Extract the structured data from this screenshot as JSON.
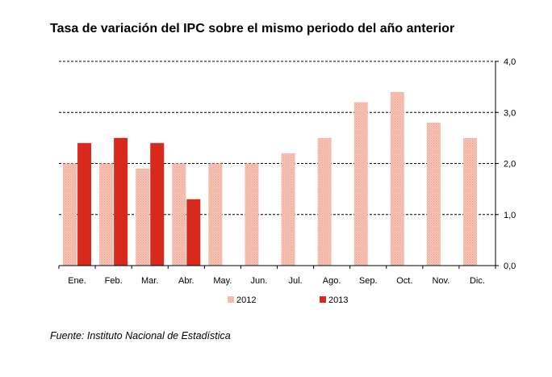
{
  "chart_data": {
    "type": "bar",
    "title": "Tasa de variación del IPC sobre el mismo periodo del año anterior",
    "categories": [
      "Ene.",
      "Feb.",
      "Mar.",
      "Abr.",
      "May.",
      "Jun.",
      "Jul.",
      "Ago.",
      "Sep.",
      "Oct.",
      "Nov.",
      "Dic."
    ],
    "series": [
      {
        "name": "2012",
        "color": "#f4b8a8",
        "values": [
          2.0,
          2.0,
          1.9,
          2.0,
          2.0,
          2.0,
          2.2,
          2.5,
          3.2,
          3.4,
          2.8,
          2.5
        ]
      },
      {
        "name": "2013",
        "color": "#d9291c",
        "values": [
          2.4,
          2.5,
          2.4,
          1.3,
          null,
          null,
          null,
          null,
          null,
          null,
          null,
          null
        ]
      }
    ],
    "y_ticks": [
      "0,0",
      "1,0",
      "2,0",
      "3,0",
      "4,0"
    ],
    "ylim": [
      0,
      4
    ],
    "y_axis_side": "right",
    "grid": "dashed horizontal",
    "legend_position": "bottom",
    "xlabel": "",
    "ylabel": ""
  },
  "source": "Fuente: Instituto Nacional de Estadística"
}
